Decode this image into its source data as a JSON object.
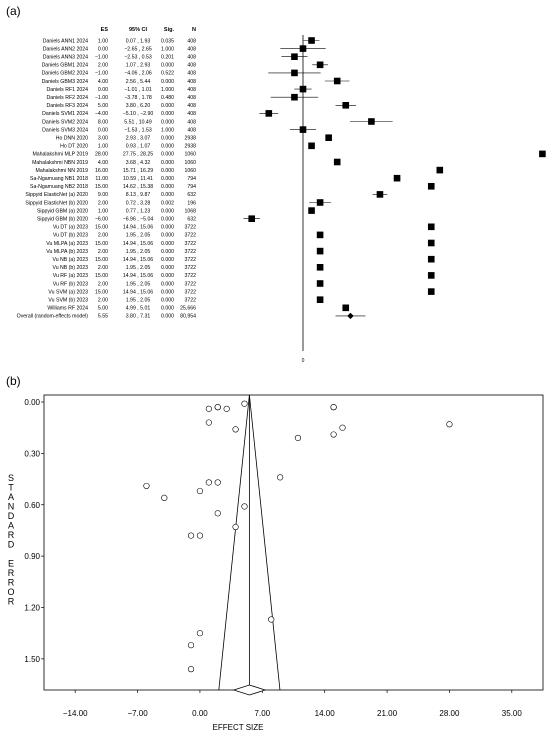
{
  "panel_a": {
    "label": "(a)",
    "headers": {
      "es": "ES",
      "ci": "95% CI",
      "sig": "Sig.",
      "n": "N"
    },
    "zero_tick": "0"
  },
  "panel_b": {
    "label": "(b)",
    "ylabel_letters": [
      "S",
      "T",
      "A",
      "N",
      "D",
      "A",
      "R",
      "D",
      "",
      "E",
      "R",
      "R",
      "O",
      "R"
    ],
    "xlabel": "EFFECT SIZE"
  },
  "chart_data": [
    {
      "type": "forest",
      "xlim": [
        -9,
        32
      ],
      "studies": [
        {
          "name": "Daniels ANN1 2024",
          "es": "1.00",
          "ci": "0.07 , 1.93",
          "sig": "0.035",
          "n": "408",
          "v": 1.0,
          "lo": 0.07,
          "hi": 1.93
        },
        {
          "name": "Daniels ANN2 2024",
          "es": "0.00",
          "ci": "−2.65 , 2.65",
          "sig": "1.000",
          "n": "408",
          "v": 0.0,
          "lo": -2.65,
          "hi": 2.65
        },
        {
          "name": "Daniels ANN3 2024",
          "es": "−1.00",
          "ci": "−2.53 , 0.53",
          "sig": "0.201",
          "n": "408",
          "v": -1.0,
          "lo": -2.53,
          "hi": 0.53
        },
        {
          "name": "Daniels GBM1 2024",
          "es": "2.00",
          "ci": "1.07 , 2.93",
          "sig": "0.000",
          "n": "408",
          "v": 2.0,
          "lo": 1.07,
          "hi": 2.93
        },
        {
          "name": "Daniels GBM2 2024",
          "es": "−1.00",
          "ci": "−4.06 , 2.06",
          "sig": "0.522",
          "n": "408",
          "v": -1.0,
          "lo": -4.06,
          "hi": 2.06
        },
        {
          "name": "Daniels GBM3 2024",
          "es": "4.00",
          "ci": "2.56 , 5.44",
          "sig": "0.000",
          "n": "408",
          "v": 4.0,
          "lo": 2.56,
          "hi": 5.44
        },
        {
          "name": "Daniels RF1 2024",
          "es": "0.00",
          "ci": "−1.01 , 1.01",
          "sig": "1.000",
          "n": "408",
          "v": 0.0,
          "lo": -1.01,
          "hi": 1.01
        },
        {
          "name": "Daniels RF2 2024",
          "es": "−1.00",
          "ci": "−3.78 , 1.78",
          "sig": "0.480",
          "n": "408",
          "v": -1.0,
          "lo": -3.78,
          "hi": 1.78
        },
        {
          "name": "Daniels RF3 2024",
          "es": "5.00",
          "ci": "3.80 , 6.20",
          "sig": "0.000",
          "n": "408",
          "v": 5.0,
          "lo": 3.8,
          "hi": 6.2
        },
        {
          "name": "Daniels SVM1 2024",
          "es": "−4.00",
          "ci": "−5.10 , −2.90",
          "sig": "0.000",
          "n": "408",
          "v": -4.0,
          "lo": -5.1,
          "hi": -2.9
        },
        {
          "name": "Daniels SVM2 2024",
          "es": "8.00",
          "ci": "5.51 , 10.49",
          "sig": "0.000",
          "n": "408",
          "v": 8.0,
          "lo": 5.51,
          "hi": 10.49
        },
        {
          "name": "Daniels SVM3 2024",
          "es": "0.00",
          "ci": "−1.53 , 1.53",
          "sig": "1.000",
          "n": "408",
          "v": 0.0,
          "lo": -1.53,
          "hi": 1.53
        },
        {
          "name": "Ho DNN 2020",
          "es": "3.00",
          "ci": "2.93 , 3.07",
          "sig": "0.000",
          "n": "2938",
          "v": 3.0,
          "lo": 2.93,
          "hi": 3.07
        },
        {
          "name": "Ho DT 2020",
          "es": "1.00",
          "ci": "0.93 , 1.07",
          "sig": "0.000",
          "n": "2938",
          "v": 1.0,
          "lo": 0.93,
          "hi": 1.07
        },
        {
          "name": "Mahalakshmi MLP 2019",
          "es": "28.00",
          "ci": "27.75 , 28.25",
          "sig": "0.000",
          "n": "1060",
          "v": 28.0,
          "lo": 27.75,
          "hi": 28.25
        },
        {
          "name": "Mahalakshmi NBN 2019",
          "es": "4.00",
          "ci": "3.68 , 4.32",
          "sig": "0.000",
          "n": "1060",
          "v": 4.0,
          "lo": 3.68,
          "hi": 4.32
        },
        {
          "name": "Mahalakshmi NN 2019",
          "es": "16.00",
          "ci": "15.71 , 16.29",
          "sig": "0.000",
          "n": "1060",
          "v": 16.0,
          "lo": 15.71,
          "hi": 16.29
        },
        {
          "name": "Sa-Ngamuang NB1 2018",
          "es": "11.00",
          "ci": "10.59 , 11.41",
          "sig": "0.000",
          "n": "794",
          "v": 11.0,
          "lo": 10.59,
          "hi": 11.41
        },
        {
          "name": "Sa-Ngamuang NB2 2018",
          "es": "15.00",
          "ci": "14.62 , 15.38",
          "sig": "0.000",
          "n": "794",
          "v": 15.0,
          "lo": 14.62,
          "hi": 15.38
        },
        {
          "name": "Sippyid ElasticNet (a) 2020",
          "es": "9.00",
          "ci": "8.13 , 9.87",
          "sig": "0.000",
          "n": "632",
          "v": 9.0,
          "lo": 8.13,
          "hi": 9.87
        },
        {
          "name": "Sippyid ElasticNet (b) 2020",
          "es": "2.00",
          "ci": "0.72 , 3.28",
          "sig": "0.002",
          "n": "196",
          "v": 2.0,
          "lo": 0.72,
          "hi": 3.28
        },
        {
          "name": "Sippyid GBM (a) 2020",
          "es": "1.00",
          "ci": "0.77 , 1.23",
          "sig": "0.000",
          "n": "1068",
          "v": 1.0,
          "lo": 0.77,
          "hi": 1.23
        },
        {
          "name": "Sippyid GBM (b) 2020",
          "es": "−6.00",
          "ci": "−6.96 , −5.04",
          "sig": "0.000",
          "n": "632",
          "v": -6.0,
          "lo": -6.96,
          "hi": -5.04
        },
        {
          "name": "Vu DT (a) 2023",
          "es": "15.00",
          "ci": "14.94 , 15.06",
          "sig": "0.000",
          "n": "3722",
          "v": 15.0,
          "lo": 14.94,
          "hi": 15.06
        },
        {
          "name": "Vu DT (b) 2023",
          "es": "2.00",
          "ci": "1.95 , 2.05",
          "sig": "0.000",
          "n": "3722",
          "v": 2.0,
          "lo": 1.95,
          "hi": 2.05
        },
        {
          "name": "Vu MLPA (a) 2023",
          "es": "15.00",
          "ci": "14.94 , 15.06",
          "sig": "0.000",
          "n": "3722",
          "v": 15.0,
          "lo": 14.94,
          "hi": 15.06
        },
        {
          "name": "Vu MLPA (b) 2023",
          "es": "2.00",
          "ci": "1.95 , 2.05",
          "sig": "0.000",
          "n": "3722",
          "v": 2.0,
          "lo": 1.95,
          "hi": 2.05
        },
        {
          "name": "Vu NB (a) 2023",
          "es": "15.00",
          "ci": "14.94 , 15.06",
          "sig": "0.000",
          "n": "3722",
          "v": 15.0,
          "lo": 14.94,
          "hi": 15.06
        },
        {
          "name": "Vu NB (b) 2023",
          "es": "2.00",
          "ci": "1.95 , 2.05",
          "sig": "0.000",
          "n": "3722",
          "v": 2.0,
          "lo": 1.95,
          "hi": 2.05
        },
        {
          "name": "Vu RF (a) 2023",
          "es": "15.00",
          "ci": "14.94 , 15.06",
          "sig": "0.000",
          "n": "3722",
          "v": 15.0,
          "lo": 14.94,
          "hi": 15.06
        },
        {
          "name": "Vu RF (b) 2023",
          "es": "2.00",
          "ci": "1.95 , 2.05",
          "sig": "0.000",
          "n": "3722",
          "v": 2.0,
          "lo": 1.95,
          "hi": 2.05
        },
        {
          "name": "Vu SVM (a) 2023",
          "es": "15.00",
          "ci": "14.94 , 15.06",
          "sig": "0.000",
          "n": "3722",
          "v": 15.0,
          "lo": 14.94,
          "hi": 15.06
        },
        {
          "name": "Vu SVM (b) 2023",
          "es": "2.00",
          "ci": "1.95 , 2.05",
          "sig": "0.000",
          "n": "3722",
          "v": 2.0,
          "lo": 1.95,
          "hi": 2.05
        },
        {
          "name": "Williams RF 2024",
          "es": "5.00",
          "ci": "4.99 , 5.01",
          "sig": "0.000",
          "n": "25,666",
          "v": 5.0,
          "lo": 4.99,
          "hi": 5.01
        }
      ],
      "overall": {
        "name": "Overall (random-effects model)",
        "es": "5.55",
        "ci": "3.80 , 7.31",
        "sig": "0.000",
        "n": "80,954",
        "v": 5.55,
        "lo": 3.8,
        "hi": 7.31
      }
    },
    {
      "type": "scatter",
      "subtype": "funnel",
      "xlabel": "EFFECT SIZE",
      "ylabel": "STANDARD ERROR",
      "xlim": [
        -17.5,
        38.5
      ],
      "ylim": [
        0,
        1.7
      ],
      "y_inverted": true,
      "xticks": [
        -14,
        -7,
        0,
        7,
        14,
        21,
        28,
        35
      ],
      "xtick_labels": [
        "−14.00",
        "−7.00",
        "0.00",
        "7.00",
        "14.00",
        "21.00",
        "28.00",
        "35.00"
      ],
      "yticks": [
        0,
        0.3,
        0.6,
        0.9,
        1.2,
        1.5
      ],
      "ytick_labels": [
        "0.00",
        "0.30",
        "0.60",
        "0.90",
        "1.20",
        "1.50"
      ],
      "center": 5.55,
      "diamond": {
        "center": 5.55,
        "lo": 3.8,
        "hi": 7.31
      },
      "points": [
        {
          "x": 1.0,
          "y": 0.47
        },
        {
          "x": 0.0,
          "y": 1.35
        },
        {
          "x": -1.0,
          "y": 0.78
        },
        {
          "x": 2.0,
          "y": 0.47
        },
        {
          "x": -1.0,
          "y": 1.56
        },
        {
          "x": 4.0,
          "y": 0.73
        },
        {
          "x": 0.0,
          "y": 0.52
        },
        {
          "x": -1.0,
          "y": 1.42
        },
        {
          "x": 5.0,
          "y": 0.61
        },
        {
          "x": -4.0,
          "y": 0.56
        },
        {
          "x": 8.0,
          "y": 1.27
        },
        {
          "x": 0.0,
          "y": 0.78
        },
        {
          "x": 3.0,
          "y": 0.04
        },
        {
          "x": 1.0,
          "y": 0.04
        },
        {
          "x": 28.0,
          "y": 0.13
        },
        {
          "x": 4.0,
          "y": 0.16
        },
        {
          "x": 16.0,
          "y": 0.15
        },
        {
          "x": 11.0,
          "y": 0.21
        },
        {
          "x": 15.0,
          "y": 0.19
        },
        {
          "x": 9.0,
          "y": 0.44
        },
        {
          "x": 2.0,
          "y": 0.65
        },
        {
          "x": 1.0,
          "y": 0.12
        },
        {
          "x": -6.0,
          "y": 0.49
        },
        {
          "x": 15.0,
          "y": 0.03
        },
        {
          "x": 2.0,
          "y": 0.03
        },
        {
          "x": 15.0,
          "y": 0.03
        },
        {
          "x": 2.0,
          "y": 0.03
        },
        {
          "x": 5.0,
          "y": 0.01
        }
      ]
    }
  ]
}
